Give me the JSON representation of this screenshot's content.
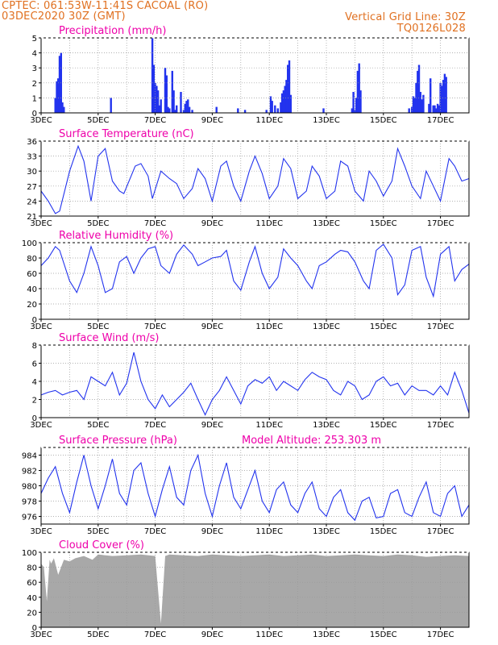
{
  "header": {
    "line1": "CPTEC:   061:53W-11:41S   CACOAL (RO)",
    "line2": "03DEC2020 30Z (GMT)",
    "right1": "Vertical Grid Line: 30Z",
    "right2": "TQ0126L028"
  },
  "colors": {
    "header": "#e07020",
    "title": "#ee00aa",
    "series": "#2233ee",
    "cloud": "#a8a8a8",
    "grid": "#999999"
  },
  "x_axis": {
    "start_date": "03DEC",
    "end_date": "18DEC",
    "ticks": [
      "3DEC",
      "5DEC",
      "7DEC",
      "9DEC",
      "11DEC",
      "13DEC",
      "15DEC",
      "17DEC"
    ]
  },
  "chart_data": [
    {
      "type": "bar",
      "title": "Precipitation (mm/h)",
      "ylim": [
        0,
        5
      ],
      "yticks": [
        "0",
        "1",
        "2",
        "3",
        "4",
        "5"
      ],
      "x": [
        0.5,
        0.55,
        0.6,
        0.65,
        0.7,
        0.75,
        0.8,
        2.45,
        3.9,
        3.95,
        4.0,
        4.05,
        4.1,
        4.15,
        4.2,
        4.35,
        4.4,
        4.45,
        4.5,
        4.6,
        4.65,
        4.7,
        4.75,
        4.9,
        5.0,
        5.05,
        5.1,
        5.15,
        5.2,
        5.3,
        6.15,
        6.9,
        7.15,
        7.9,
        8.05,
        8.1,
        8.2,
        8.3,
        8.4,
        8.45,
        8.5,
        8.55,
        8.6,
        8.65,
        8.7,
        8.75,
        9.9,
        10.9,
        10.95,
        11.0,
        11.05,
        11.1,
        11.15,
        11.2,
        12.9,
        13.0,
        13.05,
        13.1,
        13.15,
        13.2,
        13.25,
        13.3,
        13.35,
        13.4,
        13.6,
        13.65,
        13.75,
        13.8,
        13.85,
        13.9,
        13.95,
        14.0,
        14.05,
        14.1,
        14.15,
        14.2
      ],
      "values": [
        1.0,
        2.1,
        2.3,
        3.8,
        4.0,
        0.7,
        0.4,
        1.0,
        5.0,
        3.2,
        2.0,
        1.8,
        1.5,
        0.5,
        0.9,
        3.0,
        2.5,
        0.4,
        0.3,
        2.8,
        1.5,
        0.2,
        0.5,
        1.4,
        0.2,
        0.6,
        0.8,
        0.9,
        0.4,
        0.2,
        0.4,
        0.3,
        0.2,
        0.2,
        1.1,
        0.8,
        0.5,
        0.3,
        0.7,
        1.3,
        1.5,
        1.8,
        2.2,
        3.2,
        3.5,
        1.2,
        0.3,
        0.3,
        1.4,
        0.2,
        1.0,
        2.8,
        3.3,
        1.5,
        0.3,
        0.4,
        1.1,
        1.0,
        2.0,
        2.8,
        3.2,
        1.4,
        0.9,
        1.2,
        0.6,
        2.3,
        0.5,
        0.5,
        0.3,
        0.6,
        0.5,
        2.0,
        1.8,
        2.2,
        2.6,
        2.4
      ]
    },
    {
      "type": "line",
      "title": "Surface Temperature (nC)",
      "ylim": [
        21,
        36
      ],
      "yticks": [
        "21",
        "24",
        "27",
        "30",
        "33",
        "36"
      ],
      "x": [
        0,
        0.25,
        0.5,
        0.65,
        1.0,
        1.3,
        1.5,
        1.75,
        2.0,
        2.25,
        2.5,
        2.75,
        2.9,
        3.3,
        3.5,
        3.75,
        3.9,
        4.2,
        4.5,
        4.75,
        5.0,
        5.3,
        5.5,
        5.75,
        6.0,
        6.3,
        6.5,
        6.75,
        7.0,
        7.3,
        7.5,
        7.75,
        8.0,
        8.3,
        8.5,
        8.75,
        9.0,
        9.3,
        9.5,
        9.75,
        10.0,
        10.3,
        10.5,
        10.75,
        11.0,
        11.3,
        11.5,
        11.75,
        12.0,
        12.3,
        12.5,
        12.75,
        13.0,
        13.3,
        13.5,
        13.75,
        14.0,
        14.3,
        14.5,
        14.75,
        15.0
      ],
      "values": [
        26.0,
        24.0,
        21.5,
        22.0,
        30.0,
        35.0,
        32.0,
        24.0,
        33.0,
        34.5,
        28.0,
        26.0,
        25.5,
        31.0,
        31.5,
        29.0,
        24.5,
        30.0,
        28.5,
        27.5,
        24.5,
        26.5,
        30.5,
        28.5,
        24.0,
        31.0,
        32.0,
        27.0,
        24.0,
        30.0,
        33.0,
        29.5,
        24.5,
        27.0,
        32.5,
        30.5,
        24.5,
        26.0,
        31.0,
        29.0,
        24.5,
        26.0,
        32.0,
        31.0,
        26.0,
        24.0,
        30.0,
        28.0,
        25.0,
        28.0,
        34.5,
        31.0,
        27.0,
        24.5,
        30.0,
        27.0,
        24.0,
        32.5,
        31.0,
        28.0,
        28.5
      ]
    },
    {
      "type": "line",
      "title": "Relative Humidity (%)",
      "ylim": [
        0,
        100
      ],
      "yticks": [
        "0",
        "20",
        "40",
        "60",
        "80",
        "100"
      ],
      "x": [
        0,
        0.25,
        0.5,
        0.65,
        1.0,
        1.25,
        1.5,
        1.75,
        2.0,
        2.25,
        2.5,
        2.75,
        3.0,
        3.25,
        3.5,
        3.75,
        4.0,
        4.2,
        4.5,
        4.75,
        5.0,
        5.3,
        5.5,
        5.75,
        6.0,
        6.3,
        6.5,
        6.75,
        7.0,
        7.3,
        7.5,
        7.75,
        8.0,
        8.3,
        8.5,
        8.75,
        9.0,
        9.3,
        9.5,
        9.75,
        10.0,
        10.3,
        10.5,
        10.75,
        11.0,
        11.3,
        11.5,
        11.75,
        12.0,
        12.3,
        12.5,
        12.75,
        13.0,
        13.3,
        13.5,
        13.75,
        14.0,
        14.3,
        14.5,
        14.75,
        15.0
      ],
      "values": [
        70,
        80,
        95,
        90,
        50,
        35,
        60,
        95,
        70,
        35,
        40,
        75,
        82,
        60,
        80,
        92,
        95,
        70,
        60,
        85,
        97,
        85,
        70,
        75,
        80,
        82,
        90,
        50,
        38,
        75,
        95,
        60,
        40,
        55,
        92,
        80,
        70,
        50,
        40,
        70,
        75,
        85,
        90,
        88,
        75,
        50,
        40,
        90,
        98,
        80,
        32,
        45,
        90,
        95,
        55,
        30,
        85,
        95,
        50,
        65,
        72
      ]
    },
    {
      "type": "line",
      "title": "Surface Wind (m/s)",
      "ylim": [
        0,
        8
      ],
      "yticks": [
        "0",
        "2",
        "4",
        "6",
        "8"
      ],
      "x": [
        0,
        0.25,
        0.5,
        0.75,
        1.0,
        1.25,
        1.5,
        1.75,
        2.0,
        2.25,
        2.5,
        2.75,
        3.0,
        3.25,
        3.5,
        3.75,
        4.0,
        4.25,
        4.5,
        4.75,
        5.0,
        5.25,
        5.5,
        5.75,
        6.0,
        6.25,
        6.5,
        6.75,
        7.0,
        7.25,
        7.5,
        7.75,
        8.0,
        8.25,
        8.5,
        8.75,
        9.0,
        9.25,
        9.5,
        9.75,
        10.0,
        10.25,
        10.5,
        10.75,
        11.0,
        11.25,
        11.5,
        11.75,
        12.0,
        12.25,
        12.5,
        12.75,
        13.0,
        13.25,
        13.5,
        13.75,
        14.0,
        14.25,
        14.5,
        14.75,
        15.0
      ],
      "values": [
        2.5,
        2.8,
        3.0,
        2.5,
        2.8,
        3.0,
        2.0,
        4.5,
        4.0,
        3.5,
        5.0,
        2.5,
        3.8,
        7.2,
        4.0,
        2.0,
        1.0,
        2.5,
        1.2,
        2.0,
        2.8,
        3.8,
        2.0,
        0.3,
        2.0,
        3.0,
        4.5,
        3.0,
        1.5,
        3.5,
        4.2,
        3.8,
        4.5,
        3.0,
        4.0,
        3.5,
        3.0,
        4.2,
        5.0,
        4.5,
        4.2,
        3.0,
        2.5,
        4.0,
        3.5,
        2.0,
        2.5,
        4.0,
        4.5,
        3.5,
        3.8,
        2.5,
        3.5,
        3.0,
        3.0,
        2.5,
        3.5,
        2.5,
        5.0,
        3.0,
        0.5
      ]
    },
    {
      "type": "line",
      "title": "Surface Pressure (hPa)",
      "subtitle": "Model Altitude: 253.303 m",
      "ylim": [
        975,
        985
      ],
      "yticks": [
        "976",
        "978",
        "980",
        "982",
        "984"
      ],
      "x": [
        0,
        0.25,
        0.5,
        0.75,
        1.0,
        1.25,
        1.5,
        1.75,
        2.0,
        2.25,
        2.5,
        2.75,
        3.0,
        3.25,
        3.5,
        3.75,
        4.0,
        4.25,
        4.5,
        4.75,
        5.0,
        5.25,
        5.5,
        5.75,
        6.0,
        6.25,
        6.5,
        6.75,
        7.0,
        7.25,
        7.5,
        7.75,
        8.0,
        8.25,
        8.5,
        8.75,
        9.0,
        9.25,
        9.5,
        9.75,
        10.0,
        10.25,
        10.5,
        10.75,
        11.0,
        11.25,
        11.5,
        11.75,
        12.0,
        12.25,
        12.5,
        12.75,
        13.0,
        13.25,
        13.5,
        13.75,
        14.0,
        14.25,
        14.5,
        14.75,
        15.0
      ],
      "values": [
        979.0,
        981.0,
        982.5,
        979.0,
        976.5,
        980.5,
        984.0,
        980.0,
        977.0,
        980.0,
        983.5,
        979.0,
        977.5,
        982.0,
        983.0,
        979.0,
        976.0,
        979.5,
        982.5,
        978.5,
        977.5,
        982.0,
        984.0,
        979.0,
        976.0,
        980.0,
        983.0,
        978.5,
        977.0,
        979.5,
        982.0,
        978.0,
        976.5,
        979.5,
        980.5,
        977.5,
        976.5,
        979.0,
        980.5,
        977.0,
        976.0,
        978.5,
        979.5,
        976.5,
        975.5,
        978.0,
        978.5,
        975.8,
        976.0,
        979.0,
        979.5,
        976.5,
        976.0,
        978.5,
        980.5,
        976.5,
        976.0,
        979.0,
        980.0,
        976.0,
        977.5
      ]
    },
    {
      "type": "area",
      "title": "Cloud Cover (%)",
      "ylim": [
        0,
        100
      ],
      "yticks": [
        "0",
        "20",
        "40",
        "60",
        "80",
        "100"
      ],
      "x": [
        0,
        0.1,
        0.2,
        0.3,
        0.35,
        0.45,
        0.6,
        0.8,
        1.0,
        1.2,
        1.5,
        1.8,
        2.0,
        2.5,
        3.0,
        3.5,
        4.0,
        4.2,
        4.35,
        4.5,
        5.0,
        5.5,
        6.0,
        6.5,
        7.0,
        7.5,
        8.0,
        8.5,
        9.0,
        9.5,
        10.0,
        10.5,
        11.0,
        11.5,
        12.0,
        12.5,
        13.0,
        13.5,
        14.0,
        14.5,
        15.0
      ],
      "values": [
        85,
        80,
        35,
        90,
        85,
        92,
        70,
        90,
        88,
        92,
        95,
        90,
        97,
        95,
        96,
        97,
        95,
        5,
        95,
        97,
        96,
        95,
        97,
        96,
        95,
        96,
        97,
        95,
        96,
        97,
        95,
        96,
        97,
        96,
        95,
        97,
        96,
        94,
        95,
        96,
        95
      ]
    }
  ]
}
